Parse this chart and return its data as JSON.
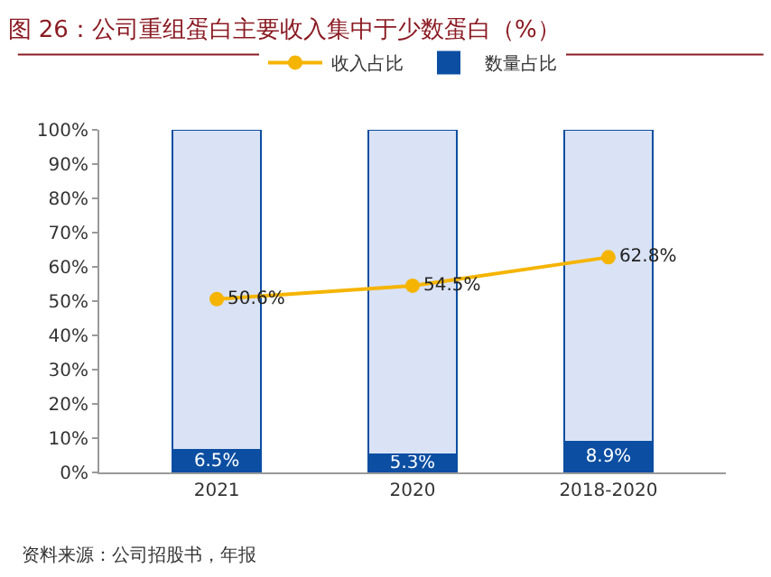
{
  "chart_data": {
    "type": "bar",
    "title": "图 26：公司重组蛋白主要收入集中于少数蛋白（%）",
    "categories": [
      "2021",
      "2020",
      "2018-2020"
    ],
    "stacked": true,
    "legend": "top",
    "series": [
      {
        "name": "数量占比",
        "color": "#0b4ea2",
        "values": [
          6.5,
          5.3,
          8.9
        ],
        "value_labels": [
          "6.5%",
          "5.3%",
          "8.9%"
        ]
      },
      {
        "color": "#dae2f5",
        "values": [
          93.5,
          94.7,
          91.1
        ]
      },
      {
        "name": "收入占比",
        "type": "line",
        "color": "#f5b400",
        "marker": "circle",
        "values": [
          50.6,
          54.5,
          62.8
        ],
        "value_labels": [
          "50.6%",
          "54.5%",
          "62.8%"
        ]
      }
    ],
    "ylim": [
      0,
      100
    ],
    "yticks": [
      {
        "value": 0,
        "label": "0%"
      },
      {
        "value": 10,
        "label": "10%"
      },
      {
        "value": 20,
        "label": "20%"
      },
      {
        "value": 30,
        "label": "30%"
      },
      {
        "value": 40,
        "label": "40%"
      },
      {
        "value": 50,
        "label": "50%"
      },
      {
        "value": 60,
        "label": "60%"
      },
      {
        "value": 70,
        "label": "70%"
      },
      {
        "value": 80,
        "label": "80%"
      },
      {
        "value": 90,
        "label": "90%"
      },
      {
        "value": 100,
        "label": "100%"
      }
    ],
    "annotations": [
      "资料来源：公司招股书，年报"
    ]
  }
}
